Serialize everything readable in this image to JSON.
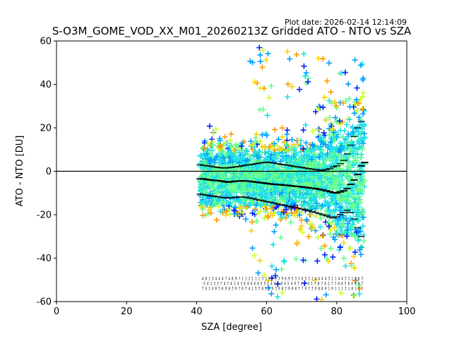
{
  "chart_data": {
    "type": "scatter",
    "title": "S-O3M_GOME_VOD_XX_M01_20260213Z Gridded ATO - NTO vs SZA",
    "plot_date": "Plot date: 2026-02-14 12:14:09",
    "xlabel": "SZA [degree]",
    "ylabel": "ATO - NTO [DU]",
    "xlim": [
      0,
      100
    ],
    "ylim": [
      -60,
      60
    ],
    "xticks": [
      0,
      20,
      40,
      60,
      80,
      100
    ],
    "yticks": [
      -60,
      -40,
      -20,
      0,
      20,
      40,
      60
    ],
    "zero_line": 0,
    "series": [
      {
        "name": "mean",
        "style": "square-markers",
        "color": "#000000",
        "x": [
          41,
          42,
          43,
          44,
          45,
          46,
          47,
          48,
          49,
          50,
          51,
          52,
          53,
          54,
          55,
          56,
          57,
          58,
          59,
          60,
          61,
          62,
          63,
          64,
          65,
          66,
          67,
          68,
          69,
          70,
          71,
          72,
          73,
          74,
          75,
          76,
          77,
          78,
          79,
          80,
          81,
          82,
          83,
          84,
          85,
          86,
          87,
          88
        ],
        "y": [
          -3.5,
          -3.5,
          -3.8,
          -4.0,
          -4.2,
          -4.3,
          -4.5,
          -4.8,
          -5.0,
          -4.8,
          -4.6,
          -4.5,
          -4.4,
          -4.5,
          -4.6,
          -4.8,
          -5.0,
          -5.2,
          -5.4,
          -5.6,
          -5.8,
          -6.0,
          -6.1,
          -6.2,
          -6.4,
          -6.5,
          -6.7,
          -6.9,
          -7.0,
          -7.2,
          -7.4,
          -7.6,
          -7.8,
          -8.0,
          -8.3,
          -8.6,
          -9.0,
          -9.4,
          -9.8,
          -10.0,
          -9.5,
          -9.0,
          -8.0,
          -6.0,
          -4.0,
          -1.5,
          2.5,
          4.0
        ]
      },
      {
        "name": "mean + std",
        "style": "dotted",
        "color": "#000000",
        "x": [
          41,
          42,
          43,
          44,
          45,
          46,
          47,
          48,
          49,
          50,
          51,
          52,
          53,
          54,
          55,
          56,
          57,
          58,
          59,
          60,
          61,
          62,
          63,
          64,
          65,
          66,
          67,
          68,
          69,
          70,
          71,
          72,
          73,
          74,
          75,
          76,
          77,
          78,
          79,
          80,
          81,
          82,
          83,
          84,
          85,
          86,
          87
        ],
        "y": [
          3.0,
          2.7,
          2.5,
          2.3,
          2.0,
          1.8,
          1.6,
          1.5,
          1.6,
          1.8,
          2.0,
          2.2,
          2.5,
          2.8,
          3.0,
          3.2,
          3.5,
          3.8,
          4.0,
          4.2,
          4.0,
          3.8,
          3.5,
          3.2,
          3.0,
          2.8,
          2.5,
          2.2,
          2.0,
          1.8,
          1.5,
          1.2,
          1.0,
          0.8,
          0.5,
          0.5,
          0.8,
          1.2,
          2.0,
          2.5,
          3.5,
          5.0,
          8.0,
          12.0,
          16.0,
          20.0,
          23.0
        ]
      },
      {
        "name": "mean - std",
        "style": "dotted",
        "color": "#000000",
        "x": [
          41,
          42,
          43,
          44,
          45,
          46,
          47,
          48,
          49,
          50,
          51,
          52,
          53,
          54,
          55,
          56,
          57,
          58,
          59,
          60,
          61,
          62,
          63,
          64,
          65,
          66,
          67,
          68,
          69,
          70,
          71,
          72,
          73,
          74,
          75,
          76,
          77,
          78,
          79,
          80,
          81,
          82,
          83,
          84,
          85,
          86,
          87
        ],
        "y": [
          -10.5,
          -10.8,
          -11.0,
          -11.3,
          -11.5,
          -11.7,
          -12.0,
          -12.2,
          -12.3,
          -12.2,
          -12.0,
          -11.8,
          -11.8,
          -12.0,
          -12.3,
          -12.6,
          -13.0,
          -13.3,
          -13.6,
          -14.0,
          -14.3,
          -14.6,
          -15.0,
          -15.3,
          -15.6,
          -16.0,
          -16.3,
          -16.6,
          -17.0,
          -17.4,
          -17.8,
          -18.2,
          -18.6,
          -19.0,
          -19.5,
          -20.0,
          -20.5,
          -21.0,
          -21.5,
          -21.0,
          -20.0,
          -19.0,
          -18.0,
          -19.0,
          -22.0,
          -26.0,
          -30.0
        ]
      },
      {
        "name": "scatter cloud",
        "style": "plus-markers",
        "colormap": [
          "#0022ff",
          "#00a0ff",
          "#1ee0e8",
          "#66ff8c",
          "#caff2e",
          "#ffd200",
          "#ff9a00"
        ],
        "x_range": [
          41,
          88
        ],
        "y_center": -3,
        "y_spread": 18,
        "outliers_y_range": [
          -60,
          58
        ]
      }
    ],
    "stat_rows": [
      "4 8 1 3 4 4 4 7 4 8 9 7 1 1 2 1 1 1 3 3 3 9 3 3 9 6 9 5 3 3 6 5 3 2 4 4 4 4 3 1 1 4 4 3 2 2 3 8 3",
      "-3 4 1 3 3 7 4 7 4 2 4 3 6 4 6 6 4 5 5 1 4 6 4 8 4 5 4 9 7 3 3 4 1 7 8 7 8 1 7 7 8 4 5 6 4 9 0 7",
      "7 4 1 4 0 5 6 9 8 3 9 7 6 7 4 1 5 3 8 5 3 9 3 9 8 3 9 8 8 7 7 9 7 3 9 8 8 9 1 0 1 1 1 3 1 8 1 2 1"
    ],
    "colors": {
      "axis": "#000000",
      "background": "#ffffff"
    }
  }
}
